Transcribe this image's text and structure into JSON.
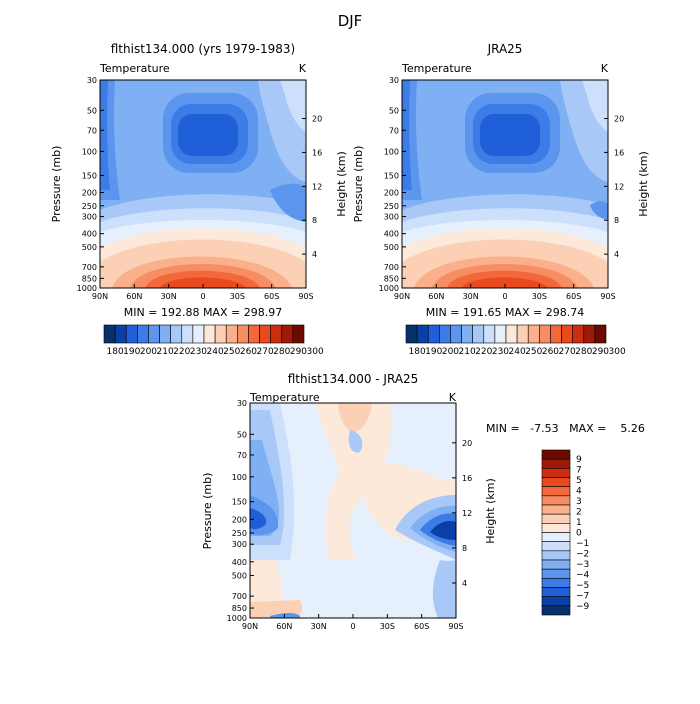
{
  "figure_title": "DJF",
  "colors": {
    "cool": [
      "#08306b",
      "#0b3fa8",
      "#1f5fd8",
      "#3d7be6",
      "#5c95ee",
      "#7fb0f4",
      "#a8c8f8",
      "#cde0fb",
      "#e6f0fc"
    ],
    "warm": [
      "#fde9da",
      "#fbd0b4",
      "#f9b08b",
      "#f78d62",
      "#f3683b",
      "#e84a1e",
      "#c92e10",
      "#9c1a06",
      "#6e0b00"
    ]
  },
  "chart_data": [
    {
      "type": "heatmap",
      "id": "model",
      "title": "flthist134.000 (yrs 1979-1983)",
      "variable": "Temperature",
      "units": "K",
      "ylabel": "Pressure (mb)",
      "ylabel_right": "Height (km)",
      "x_ticks": [
        "90N",
        "60N",
        "30N",
        "0",
        "30S",
        "60S",
        "90S"
      ],
      "y_ticks": [
        "30",
        "50",
        "70",
        "100",
        "150",
        "200",
        "250",
        "300",
        "400",
        "500",
        "700",
        "850",
        "1000"
      ],
      "y_ticks_right": [
        "20",
        "16",
        "12",
        "8",
        "4"
      ],
      "ylim": [
        1000,
        30
      ],
      "xlim": [
        "90N",
        "90S"
      ],
      "stats": "MIN = 192.88   MAX = 298.97",
      "min": 192.88,
      "max": 298.97,
      "colorbar_labels": [
        "180",
        "190",
        "200",
        "210",
        "220",
        "230",
        "240",
        "250",
        "260",
        "270",
        "280",
        "290",
        "300"
      ],
      "colorbar_orientation": "horizontal",
      "colorbar_levels": [
        180,
        190,
        200,
        210,
        220,
        230,
        240,
        250,
        260,
        270,
        280,
        290,
        300
      ]
    },
    {
      "type": "heatmap",
      "id": "obs",
      "title": "JRA25",
      "variable": "Temperature",
      "units": "K",
      "ylabel": "Pressure (mb)",
      "ylabel_right": "Height (km)",
      "x_ticks": [
        "90N",
        "60N",
        "30N",
        "0",
        "30S",
        "60S",
        "90S"
      ],
      "y_ticks": [
        "30",
        "50",
        "70",
        "100",
        "150",
        "200",
        "250",
        "300",
        "400",
        "500",
        "700",
        "850",
        "1000"
      ],
      "y_ticks_right": [
        "20",
        "16",
        "12",
        "8",
        "4"
      ],
      "ylim": [
        1000,
        30
      ],
      "xlim": [
        "90N",
        "90S"
      ],
      "stats": "MIN = 191.65   MAX = 298.74",
      "min": 191.65,
      "max": 298.74,
      "colorbar_labels": [
        "180",
        "190",
        "200",
        "210",
        "220",
        "230",
        "240",
        "250",
        "260",
        "270",
        "280",
        "290",
        "300"
      ],
      "colorbar_orientation": "horizontal",
      "colorbar_levels": [
        180,
        190,
        200,
        210,
        220,
        230,
        240,
        250,
        260,
        270,
        280,
        290,
        300
      ]
    },
    {
      "type": "heatmap",
      "id": "diff",
      "title": "flthist134.000 - JRA25",
      "variable": "Temperature",
      "units": "K",
      "ylabel": "Pressure (mb)",
      "ylabel_right": "Height (km)",
      "x_ticks": [
        "90N",
        "60N",
        "30N",
        "0",
        "30S",
        "60S",
        "90S"
      ],
      "y_ticks": [
        "30",
        "50",
        "70",
        "100",
        "150",
        "200",
        "250",
        "300",
        "400",
        "500",
        "700",
        "850",
        "1000"
      ],
      "y_ticks_right": [
        "20",
        "16",
        "12",
        "8",
        "4"
      ],
      "ylim": [
        1000,
        30
      ],
      "xlim": [
        "90N",
        "90S"
      ],
      "stats": "MIN =   -7.53   MAX =    5.26",
      "min": -7.53,
      "max": 5.26,
      "colorbar_labels": [
        "9",
        "7",
        "5",
        "4",
        "3",
        "2",
        "1",
        "0",
        "−1",
        "−2",
        "−3",
        "−4",
        "−5",
        "−7",
        "−9"
      ],
      "colorbar_orientation": "vertical",
      "colorbar_levels": [
        -9,
        -7,
        -5,
        -4,
        -3,
        -2,
        -1,
        0,
        1,
        2,
        3,
        4,
        5,
        7,
        9
      ]
    }
  ]
}
